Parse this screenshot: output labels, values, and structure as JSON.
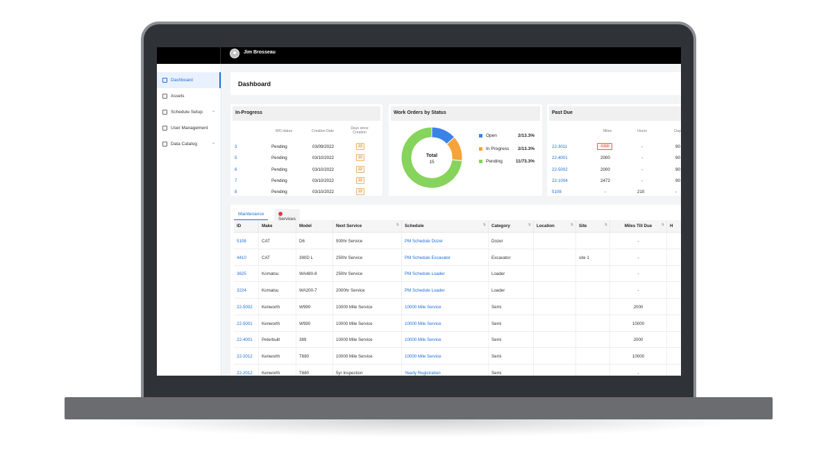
{
  "user": {
    "name": "Jim Brosseau"
  },
  "sidebar": {
    "items": [
      {
        "label": "Dashboard",
        "icon": "grid-icon",
        "active": true
      },
      {
        "label": "Assets",
        "icon": "document-icon"
      },
      {
        "label": "Schedule Setup",
        "icon": "calendar-icon",
        "chevron": true
      },
      {
        "label": "User Management",
        "icon": "users-icon"
      },
      {
        "label": "Data Catalog",
        "icon": "database-icon",
        "chevron": true
      }
    ]
  },
  "page": {
    "title": "Dashboard"
  },
  "in_progress": {
    "title": "In-Progress",
    "headers": [
      "WO status",
      "Creation Date",
      "Days since Creation"
    ],
    "rows": [
      {
        "id": "3",
        "status": "Pending",
        "date": "03/09/2022",
        "days": "23"
      },
      {
        "id": "5",
        "status": "Pending",
        "date": "03/10/2022",
        "days": "22"
      },
      {
        "id": "6",
        "status": "Pending",
        "date": "03/10/2022",
        "days": "22"
      },
      {
        "id": "7",
        "status": "Pending",
        "date": "03/10/2022",
        "days": "22"
      },
      {
        "id": "8",
        "status": "Pending",
        "date": "03/10/2022",
        "days": "22"
      }
    ]
  },
  "work_orders": {
    "title": "Work Orders by Status",
    "center_label": "Total",
    "center_value": "15",
    "legend": [
      {
        "label": "Open",
        "value": "2/13.3%",
        "color": "#3b82e6"
      },
      {
        "label": "In Progress",
        "value": "2/13.3%",
        "color": "#f5a33a"
      },
      {
        "label": "Pending",
        "value": "11/73.3%",
        "color": "#86d45b"
      }
    ]
  },
  "chart_data": {
    "type": "pie",
    "categories": [
      "Open",
      "In Progress",
      "Pending"
    ],
    "values": [
      2,
      2,
      11
    ],
    "title": "Work Orders by Status"
  },
  "past_due": {
    "title": "Past Due",
    "headers": [
      "Miles",
      "Hours",
      "Days"
    ],
    "rows": [
      {
        "id": "22-3011",
        "miles": "-5300",
        "hours": "-",
        "days": "90",
        "miles_negative": true
      },
      {
        "id": "22-4001",
        "miles": "2000",
        "hours": "-",
        "days": "90"
      },
      {
        "id": "22-5002",
        "miles": "2000",
        "hours": "-",
        "days": "90"
      },
      {
        "id": "22-1004",
        "miles": "2472",
        "hours": "-",
        "days": "90"
      },
      {
        "id": "5108",
        "miles": "-",
        "hours": "210",
        "days": "-"
      }
    ]
  },
  "tabs": [
    {
      "label": "Maintenance",
      "active": true
    },
    {
      "label": "Services"
    }
  ],
  "table": {
    "columns": [
      "ID",
      "Make",
      "Model",
      "Next Service",
      "Schedule",
      "Category",
      "Location",
      "Site",
      "Miles Till Due",
      "H"
    ],
    "rows": [
      {
        "id": "5108",
        "make": "CAT",
        "model": "D6",
        "next": "500hr Service",
        "schedule": "PM Schedule Dozer",
        "category": "Dozer",
        "location": "",
        "site": "",
        "miles": "-"
      },
      {
        "id": "4410",
        "make": "CAT",
        "model": "390D L",
        "next": "250hr Service",
        "schedule": "PM Schedule Excavator",
        "category": "Excavator",
        "location": "",
        "site": "site 1",
        "miles": "-"
      },
      {
        "id": "3625",
        "make": "Komatsu",
        "model": "WA480-8",
        "next": "250hr Service",
        "schedule": "PM Schedule Loader",
        "category": "Loader",
        "location": "",
        "site": "",
        "miles": "-"
      },
      {
        "id": "3224",
        "make": "Komatsu",
        "model": "WA200-7",
        "next": "2000hr Service",
        "schedule": "PM Schedule Loader",
        "category": "Loader",
        "location": "",
        "site": "",
        "miles": "-"
      },
      {
        "id": "22-5002",
        "make": "Kenworth",
        "model": "W990",
        "next": "10000 Mile Service",
        "schedule": "10000 Mile Service",
        "category": "Semi",
        "location": "",
        "site": "",
        "miles": "2000"
      },
      {
        "id": "22-5001",
        "make": "Kenworth",
        "model": "W990",
        "next": "10000 Mile Service",
        "schedule": "10000 Mile Service",
        "category": "Semi",
        "location": "",
        "site": "",
        "miles": "10000"
      },
      {
        "id": "22-4001",
        "make": "Peterbuilt",
        "model": "389",
        "next": "10000 Mile Service",
        "schedule": "10000 Mile Service",
        "category": "Semi",
        "location": "",
        "site": "",
        "miles": "2000"
      },
      {
        "id": "22-2012",
        "make": "Kenworth",
        "model": "T680",
        "next": "10000 Mile Service",
        "schedule": "10000 Mile Service",
        "category": "Semi",
        "location": "",
        "site": "",
        "miles": "10000"
      },
      {
        "id": "22-2012",
        "make": "Kenworth",
        "model": "T680",
        "next": "5yr Inspection",
        "schedule": "Yearly Registration",
        "category": "Semi",
        "location": "",
        "site": "",
        "miles": "-"
      }
    ]
  }
}
